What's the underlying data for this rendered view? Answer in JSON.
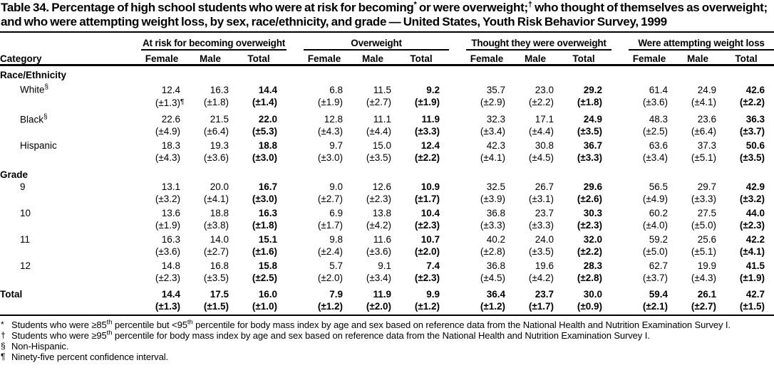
{
  "colors": {
    "text": "#000000",
    "background": "#ffffff",
    "rule": "#000000"
  },
  "title": {
    "segments": [
      {
        "t": "Table 34. Percentage of high school students who were at risk for becoming"
      },
      {
        "sup": "*"
      },
      {
        "t": " or were overweight;"
      },
      {
        "sup": "†"
      },
      {
        "t": " who thought of themselves as overweight; and who were attempting weight loss, by sex, race/ethnicity, and grade — United States, Youth Risk Behavior Survey, 1999"
      }
    ]
  },
  "table": {
    "category": "Category",
    "groups": [
      "At risk for becoming overweight",
      "Overweight",
      "Thought they were overweight",
      "Were attempting weight loss"
    ],
    "subcolumns": [
      "Female",
      "Male",
      "Total"
    ],
    "sections": [
      {
        "label": "Race/Ethnicity",
        "rows": [
          {
            "label": "White",
            "label_sup": "§",
            "values": [
              "12.4",
              "16.3",
              "14.4",
              "6.8",
              "11.5",
              "9.2",
              "35.7",
              "23.0",
              "29.2",
              "61.4",
              "24.9",
              "42.6"
            ],
            "ci": [
              "(±1.3)¶",
              "(±1.8)",
              "(±1.4)",
              "(±1.9)",
              "(±2.7)",
              "(±1.9)",
              "(±2.9)",
              "(±2.2)",
              "(±1.8)",
              "(±3.6)",
              "(±4.1)",
              "(±2.2)"
            ]
          },
          {
            "label": "Black",
            "label_sup": "§",
            "values": [
              "22.6",
              "21.5",
              "22.0",
              "12.8",
              "11.1",
              "11.9",
              "32.3",
              "17.1",
              "24.9",
              "48.3",
              "23.6",
              "36.3"
            ],
            "ci": [
              "(±4.9)",
              "(±6.4)",
              "(±5.3)",
              "(±4.3)",
              "(±4.4)",
              "(±3.3)",
              "(±3.4)",
              "(±4.4)",
              "(±3.5)",
              "(±2.5)",
              "(±6.4)",
              "(±3.7)"
            ]
          },
          {
            "label": "Hispanic",
            "values": [
              "18.3",
              "19.3",
              "18.8",
              "9.7",
              "15.0",
              "12.4",
              "42.3",
              "30.8",
              "36.7",
              "63.6",
              "37.3",
              "50.6"
            ],
            "ci": [
              "(±4.3)",
              "(±3.6)",
              "(±3.0)",
              "(±3.0)",
              "(±3.5)",
              "(±2.2)",
              "(±4.1)",
              "(±4.5)",
              "(±3.3)",
              "(±3.4)",
              "(±5.1)",
              "(±3.5)"
            ]
          }
        ]
      },
      {
        "label": "Grade",
        "rows": [
          {
            "label": "9",
            "values": [
              "13.1",
              "20.0",
              "16.7",
              "9.0",
              "12.6",
              "10.9",
              "32.5",
              "26.7",
              "29.6",
              "56.5",
              "29.7",
              "42.9"
            ],
            "ci": [
              "(±3.2)",
              "(±4.1)",
              "(±3.0)",
              "(±2.7)",
              "(±2.3)",
              "(±1.7)",
              "(±3.9)",
              "(±3.1)",
              "(±2.6)",
              "(±4.9)",
              "(±3.3)",
              "(±3.2)"
            ]
          },
          {
            "label": "10",
            "values": [
              "13.6",
              "18.8",
              "16.3",
              "6.9",
              "13.8",
              "10.4",
              "36.8",
              "23.7",
              "30.3",
              "60.2",
              "27.5",
              "44.0"
            ],
            "ci": [
              "(±1.9)",
              "(±3.8)",
              "(±1.8)",
              "(±1.7)",
              "(±4.2)",
              "(±2.3)",
              "(±3.3)",
              "(±3.3)",
              "(±2.3)",
              "(±4.0)",
              "(±5.0)",
              "(±2.3)"
            ]
          },
          {
            "label": "11",
            "values": [
              "16.3",
              "14.0",
              "15.1",
              "9.8",
              "11.6",
              "10.7",
              "40.2",
              "24.0",
              "32.0",
              "59.2",
              "25.6",
              "42.2"
            ],
            "ci": [
              "(±3.6)",
              "(±2.7)",
              "(±1.6)",
              "(±2.4)",
              "(±3.6)",
              "(±2.0)",
              "(±2.8)",
              "(±3.5)",
              "(±2.2)",
              "(±5.0)",
              "(±5.1)",
              "(±4.1)"
            ]
          },
          {
            "label": "12",
            "values": [
              "14.8",
              "16.8",
              "15.8",
              "5.7",
              "9.1",
              "7.4",
              "36.8",
              "19.6",
              "28.3",
              "62.7",
              "19.9",
              "41.5"
            ],
            "ci": [
              "(±2.3)",
              "(±3.5)",
              "(±2.5)",
              "(±2.0)",
              "(±3.4)",
              "(±2.3)",
              "(±4.5)",
              "(±4.2)",
              "(±2.8)",
              "(±3.7)",
              "(±4.3)",
              "(±1.9)"
            ]
          }
        ]
      }
    ],
    "total_row": {
      "label": "Total",
      "values": [
        "14.4",
        "17.5",
        "16.0",
        "7.9",
        "11.9",
        "9.9",
        "36.4",
        "23.7",
        "30.0",
        "59.4",
        "26.1",
        "42.7"
      ],
      "ci": [
        "(±1.3)",
        "(±1.5)",
        "(±1.0)",
        "(±1.2)",
        "(±2.0)",
        "(±1.2)",
        "(±1.2)",
        "(±1.7)",
        "(±0.9)",
        "(±2.1)",
        "(±2.7)",
        "(±1.5)"
      ]
    }
  },
  "footnotes": [
    {
      "marker": "*",
      "segments": [
        {
          "t": "Students who were ≥85"
        },
        {
          "sup": "th"
        },
        {
          "t": " percentile but <95"
        },
        {
          "sup": "th"
        },
        {
          "t": " percentile for body mass index by age and sex based on reference data from the National Health and Nutrition Examination Survey I."
        }
      ]
    },
    {
      "marker": "†",
      "segments": [
        {
          "t": "Students who were ≥95"
        },
        {
          "sup": "th"
        },
        {
          "t": " percentile for body mass index by age and sex based on reference data from the National Health and Nutrition Examination Survey I."
        }
      ]
    },
    {
      "marker": "§",
      "segments": [
        {
          "t": "Non-Hispanic."
        }
      ]
    },
    {
      "marker": "¶",
      "segments": [
        {
          "t": "Ninety-five percent confidence interval."
        }
      ]
    }
  ]
}
